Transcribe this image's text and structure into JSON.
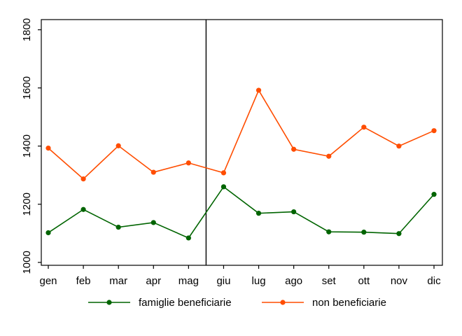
{
  "chart_data": {
    "type": "line",
    "title": "",
    "xlabel": "",
    "ylabel": "",
    "categories": [
      "gen",
      "feb",
      "mar",
      "apr",
      "mag",
      "giu",
      "lug",
      "ago",
      "set",
      "ott",
      "nov",
      "dic"
    ],
    "ylim": [
      990,
      1835
    ],
    "yticks": [
      1000,
      1200,
      1400,
      1600,
      1800
    ],
    "vertical_marker_between": [
      "mag",
      "giu"
    ],
    "grid": false,
    "legend_position": "bottom",
    "series": [
      {
        "name": "famiglie beneficiarie",
        "color": "#006400",
        "values": [
          1102,
          1182,
          1121,
          1137,
          1084,
          1260,
          1169,
          1174,
          1105,
          1104,
          1099,
          1234
        ]
      },
      {
        "name": "non beneficiarie",
        "color": "#ff4d00",
        "values": [
          1393,
          1287,
          1401,
          1310,
          1342,
          1308,
          1592,
          1389,
          1365,
          1465,
          1400,
          1453
        ]
      }
    ]
  }
}
